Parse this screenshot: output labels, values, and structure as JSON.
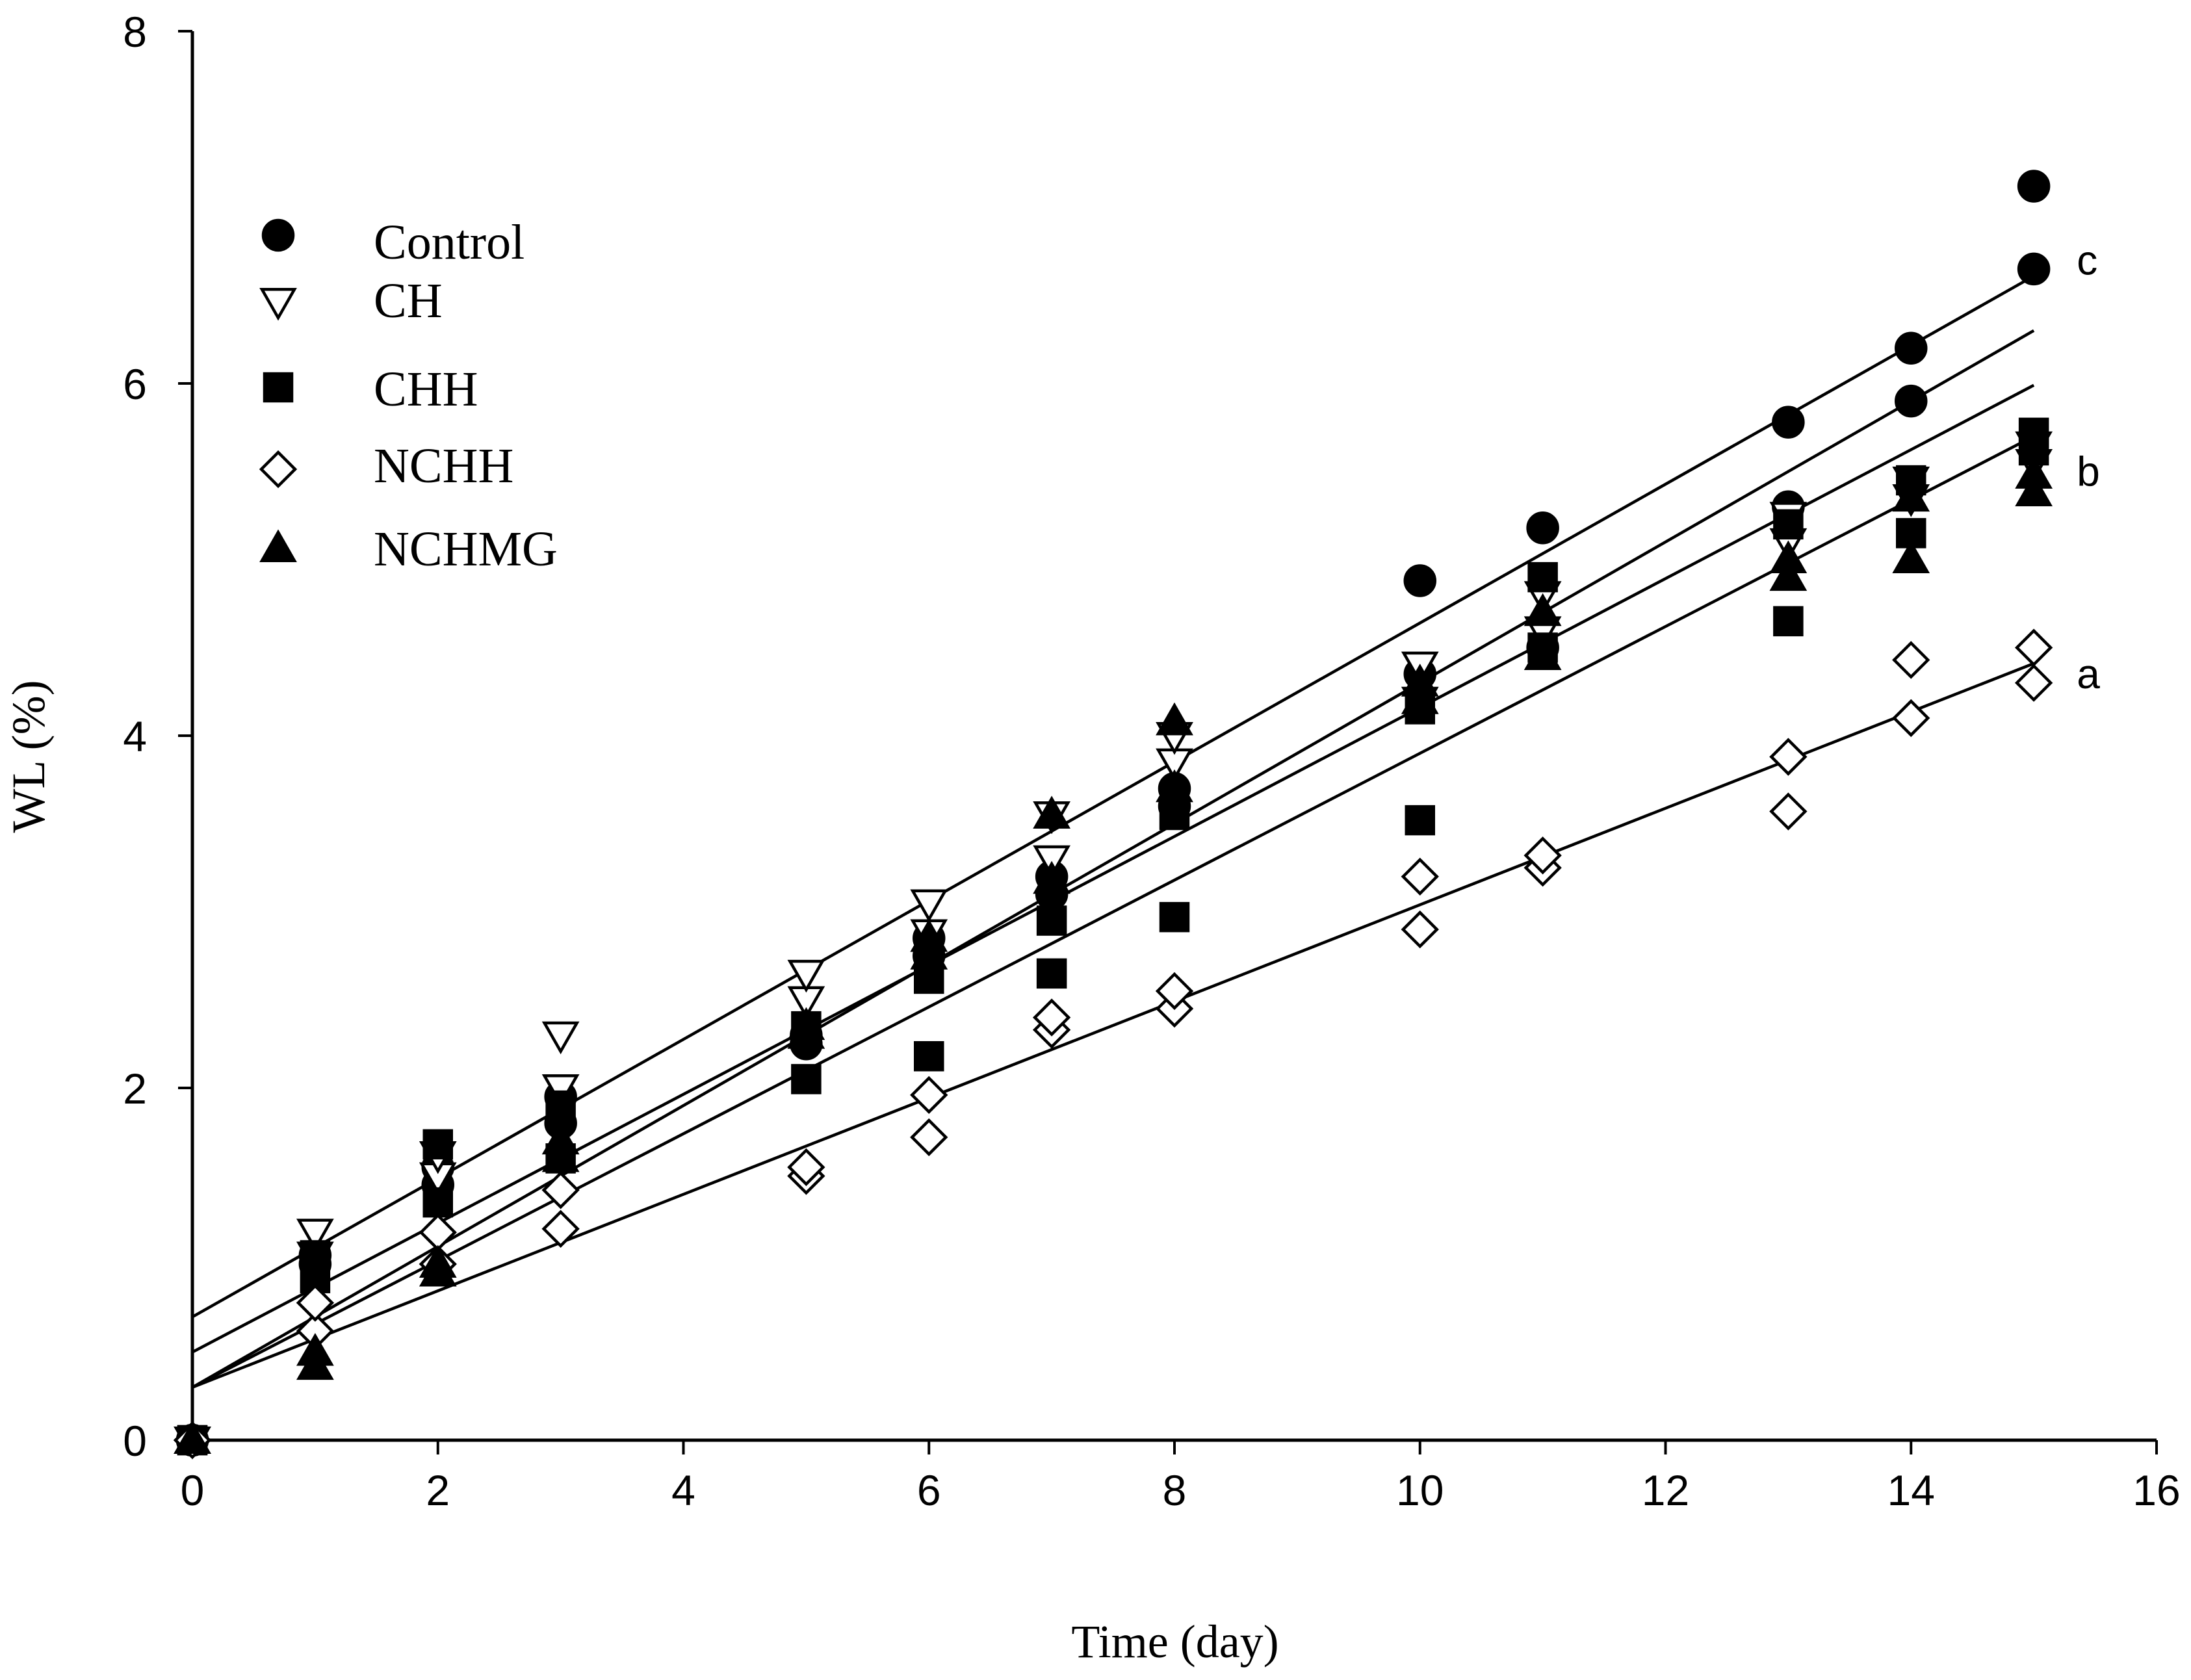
{
  "chart_data": {
    "type": "scatter",
    "title": "",
    "xlabel": "Time (day)",
    "ylabel": "WL (%)",
    "xlim": [
      0,
      16
    ],
    "ylim": [
      0,
      8
    ],
    "xticks": [
      0,
      2,
      4,
      6,
      8,
      10,
      12,
      14,
      16
    ],
    "yticks": [
      0,
      2,
      4,
      6,
      8
    ],
    "grid": false,
    "legend_position": "top-left",
    "series": [
      {
        "name": "Control",
        "marker": "circle",
        "filled": true,
        "points": [
          [
            0,
            0
          ],
          [
            0,
            0
          ],
          [
            1,
            1.0
          ],
          [
            1,
            1.05
          ],
          [
            2,
            1.45
          ],
          [
            2,
            1.55
          ],
          [
            3,
            1.8
          ],
          [
            3,
            1.95
          ],
          [
            5,
            2.25
          ],
          [
            5,
            2.3
          ],
          [
            6,
            2.75
          ],
          [
            6,
            2.85
          ],
          [
            7,
            3.1
          ],
          [
            7,
            3.2
          ],
          [
            8,
            3.6
          ],
          [
            8,
            3.7
          ],
          [
            10,
            4.35
          ],
          [
            10,
            4.88
          ],
          [
            11,
            4.5
          ],
          [
            11,
            5.18
          ],
          [
            13,
            5.3
          ],
          [
            13,
            5.78
          ],
          [
            14,
            5.9
          ],
          [
            14,
            6.2
          ],
          [
            15,
            6.65
          ],
          [
            15,
            7.12
          ]
        ],
        "fit": [
          0.7,
          0.394
        ]
      },
      {
        "name": "CH",
        "marker": "triangle-down",
        "filled": false,
        "points": [
          [
            0,
            0
          ],
          [
            0,
            0
          ],
          [
            1,
            1.18
          ],
          [
            1,
            1.05
          ],
          [
            2,
            1.5
          ],
          [
            2,
            1.62
          ],
          [
            3,
            2.0
          ],
          [
            3,
            2.3
          ],
          [
            5,
            2.5
          ],
          [
            5,
            2.65
          ],
          [
            6,
            2.88
          ],
          [
            6,
            3.05
          ],
          [
            7,
            3.3
          ],
          [
            7,
            3.55
          ],
          [
            8,
            3.85
          ],
          [
            8,
            4.0
          ],
          [
            10,
            4.2
          ],
          [
            10,
            4.4
          ],
          [
            11,
            4.6
          ],
          [
            11,
            4.8
          ],
          [
            13,
            5.1
          ],
          [
            13,
            5.25
          ],
          [
            14,
            5.35
          ],
          [
            14,
            5.45
          ],
          [
            15,
            5.55
          ],
          [
            15,
            5.65
          ]
        ],
        "fit": [
          0.5,
          0.366
        ]
      },
      {
        "name": "CHH",
        "marker": "square",
        "filled": true,
        "points": [
          [
            0,
            0
          ],
          [
            0,
            0
          ],
          [
            1,
            0.92
          ],
          [
            1,
            1.05
          ],
          [
            2,
            1.35
          ],
          [
            2,
            1.68
          ],
          [
            3,
            1.6
          ],
          [
            3,
            1.9
          ],
          [
            5,
            2.05
          ],
          [
            5,
            2.35
          ],
          [
            6,
            2.18
          ],
          [
            6,
            2.62
          ],
          [
            7,
            2.65
          ],
          [
            7,
            2.95
          ],
          [
            8,
            2.97
          ],
          [
            8,
            3.55
          ],
          [
            10,
            3.52
          ],
          [
            10,
            4.15
          ],
          [
            11,
            4.5
          ],
          [
            11,
            4.9
          ],
          [
            13,
            4.65
          ],
          [
            13,
            5.2
          ],
          [
            14,
            5.15
          ],
          [
            14,
            5.45
          ],
          [
            15,
            5.62
          ],
          [
            15,
            5.72
          ]
        ],
        "fit": [
          0.3,
          0.36
        ]
      },
      {
        "name": "NCHH",
        "marker": "diamond",
        "filled": false,
        "points": [
          [
            0,
            0
          ],
          [
            0,
            0
          ],
          [
            1,
            0.62
          ],
          [
            1,
            0.78
          ],
          [
            2,
            1.0
          ],
          [
            2,
            1.18
          ],
          [
            3,
            1.2
          ],
          [
            3,
            1.42
          ],
          [
            5,
            1.5
          ],
          [
            5,
            1.55
          ],
          [
            6,
            1.72
          ],
          [
            6,
            1.96
          ],
          [
            7,
            2.33
          ],
          [
            7,
            2.4
          ],
          [
            8,
            2.45
          ],
          [
            8,
            2.55
          ],
          [
            10,
            2.9
          ],
          [
            10,
            3.2
          ],
          [
            11,
            3.25
          ],
          [
            11,
            3.32
          ],
          [
            13,
            3.57
          ],
          [
            13,
            3.88
          ],
          [
            14,
            4.1
          ],
          [
            14,
            4.43
          ],
          [
            15,
            4.3
          ],
          [
            15,
            4.5
          ]
        ],
        "fit": [
          0.3,
          0.274
        ]
      },
      {
        "name": "NCHMG",
        "marker": "triangle-up",
        "filled": true,
        "points": [
          [
            0,
            0
          ],
          [
            0,
            0
          ],
          [
            1,
            0.42
          ],
          [
            1,
            0.5
          ],
          [
            2,
            0.95
          ],
          [
            2,
            1.0
          ],
          [
            3,
            1.6
          ],
          [
            3,
            1.7
          ],
          [
            5,
            2.3
          ],
          [
            5,
            2.35
          ],
          [
            6,
            2.75
          ],
          [
            6,
            2.85
          ],
          [
            7,
            3.18
          ],
          [
            7,
            3.55
          ],
          [
            8,
            3.7
          ],
          [
            8,
            4.08
          ],
          [
            10,
            4.2
          ],
          [
            10,
            4.3
          ],
          [
            11,
            4.45
          ],
          [
            11,
            4.7
          ],
          [
            13,
            4.9
          ],
          [
            13,
            5.0
          ],
          [
            14,
            5.0
          ],
          [
            14,
            5.35
          ],
          [
            15,
            5.38
          ],
          [
            15,
            5.48
          ]
        ],
        "fit": [
          0.3,
          0.4
        ]
      }
    ],
    "annotations": [
      {
        "text": "c",
        "x": 15.35,
        "y": 6.7
      },
      {
        "text": "b",
        "x": 15.35,
        "y": 5.5
      },
      {
        "text": "a",
        "x": 15.35,
        "y": 4.35
      }
    ]
  }
}
